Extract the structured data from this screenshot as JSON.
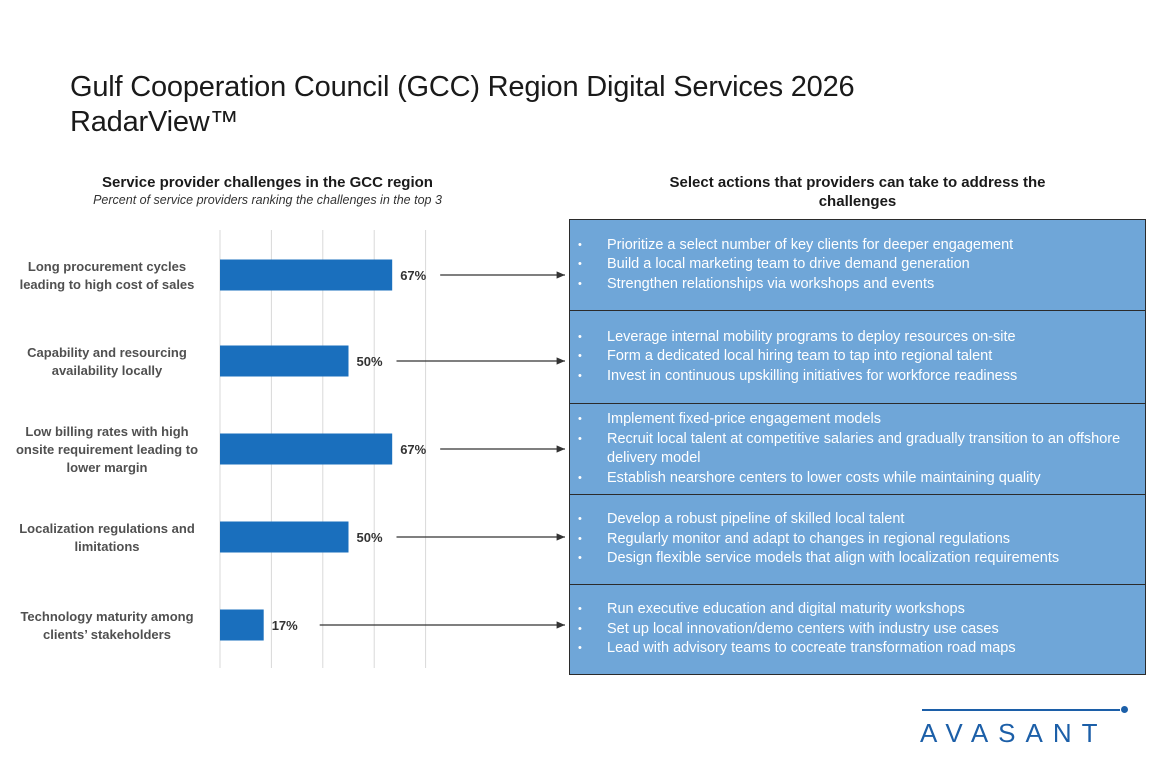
{
  "title_line1": "Gulf Cooperation Council (GCC) Region Digital Services 2026",
  "title_line2": "RadarView™",
  "left_panel": {
    "heading": "Service provider challenges in the GCC region",
    "subheading": "Percent of service providers ranking the challenges in the top 3"
  },
  "right_panel": {
    "heading_line1": "Select actions that providers can take to address the",
    "heading_line2": "challenges",
    "action_groups": [
      {
        "items": [
          "Prioritize a select number of key clients for deeper engagement",
          "Build a local marketing team to drive demand generation",
          "Strengthen relationships via workshops and events"
        ]
      },
      {
        "items": [
          "Leverage internal mobility programs to deploy resources on-site",
          "Form a dedicated local hiring team to tap into regional talent",
          "Invest in continuous upskilling initiatives for workforce readiness"
        ]
      },
      {
        "items": [
          "Implement fixed-price engagement models",
          "Recruit local talent at competitive salaries and gradually transition to an offshore delivery model",
          "Establish nearshore centers to lower costs while maintaining quality"
        ]
      },
      {
        "items": [
          "Develop a robust pipeline of skilled local talent",
          "Regularly monitor and adapt to changes in regional regulations",
          "Design flexible service models that align with localization requirements"
        ]
      },
      {
        "items": [
          "Run executive education and digital maturity workshops",
          "Set up local innovation/demo centers with industry use cases",
          "Lead with advisory teams to cocreate transformation road maps"
        ]
      }
    ]
  },
  "logo": {
    "text": "AVASANT"
  },
  "colors": {
    "bar": "#1a6fbd",
    "action_box": "#6fa6d8",
    "brand": "#1c5fa8",
    "gridline": "#d9d9d9"
  },
  "chart_data": {
    "type": "bar",
    "orientation": "horizontal",
    "title": "Service provider challenges in the GCC region",
    "subtitle": "Percent of service providers ranking the challenges in the top 3",
    "categories": [
      [
        "Long procurement cycles",
        "leading to high cost of sales"
      ],
      [
        "Capability and resourcing",
        "availability locally"
      ],
      [
        "Low billing rates with high",
        "onsite requirement leading to",
        "lower margin"
      ],
      [
        "Localization regulations and",
        "limitations"
      ],
      [
        "Technology maturity among",
        "clients’ stakeholders"
      ]
    ],
    "values": [
      67,
      50,
      67,
      50,
      17
    ],
    "data_labels": [
      "67%",
      "50%",
      "67%",
      "50%",
      "17%"
    ],
    "xlabel": "",
    "ylabel": "",
    "xlim": [
      0,
      100
    ],
    "gridlines": [
      0,
      20,
      40,
      60,
      80
    ],
    "grid": true,
    "legend": "none"
  }
}
